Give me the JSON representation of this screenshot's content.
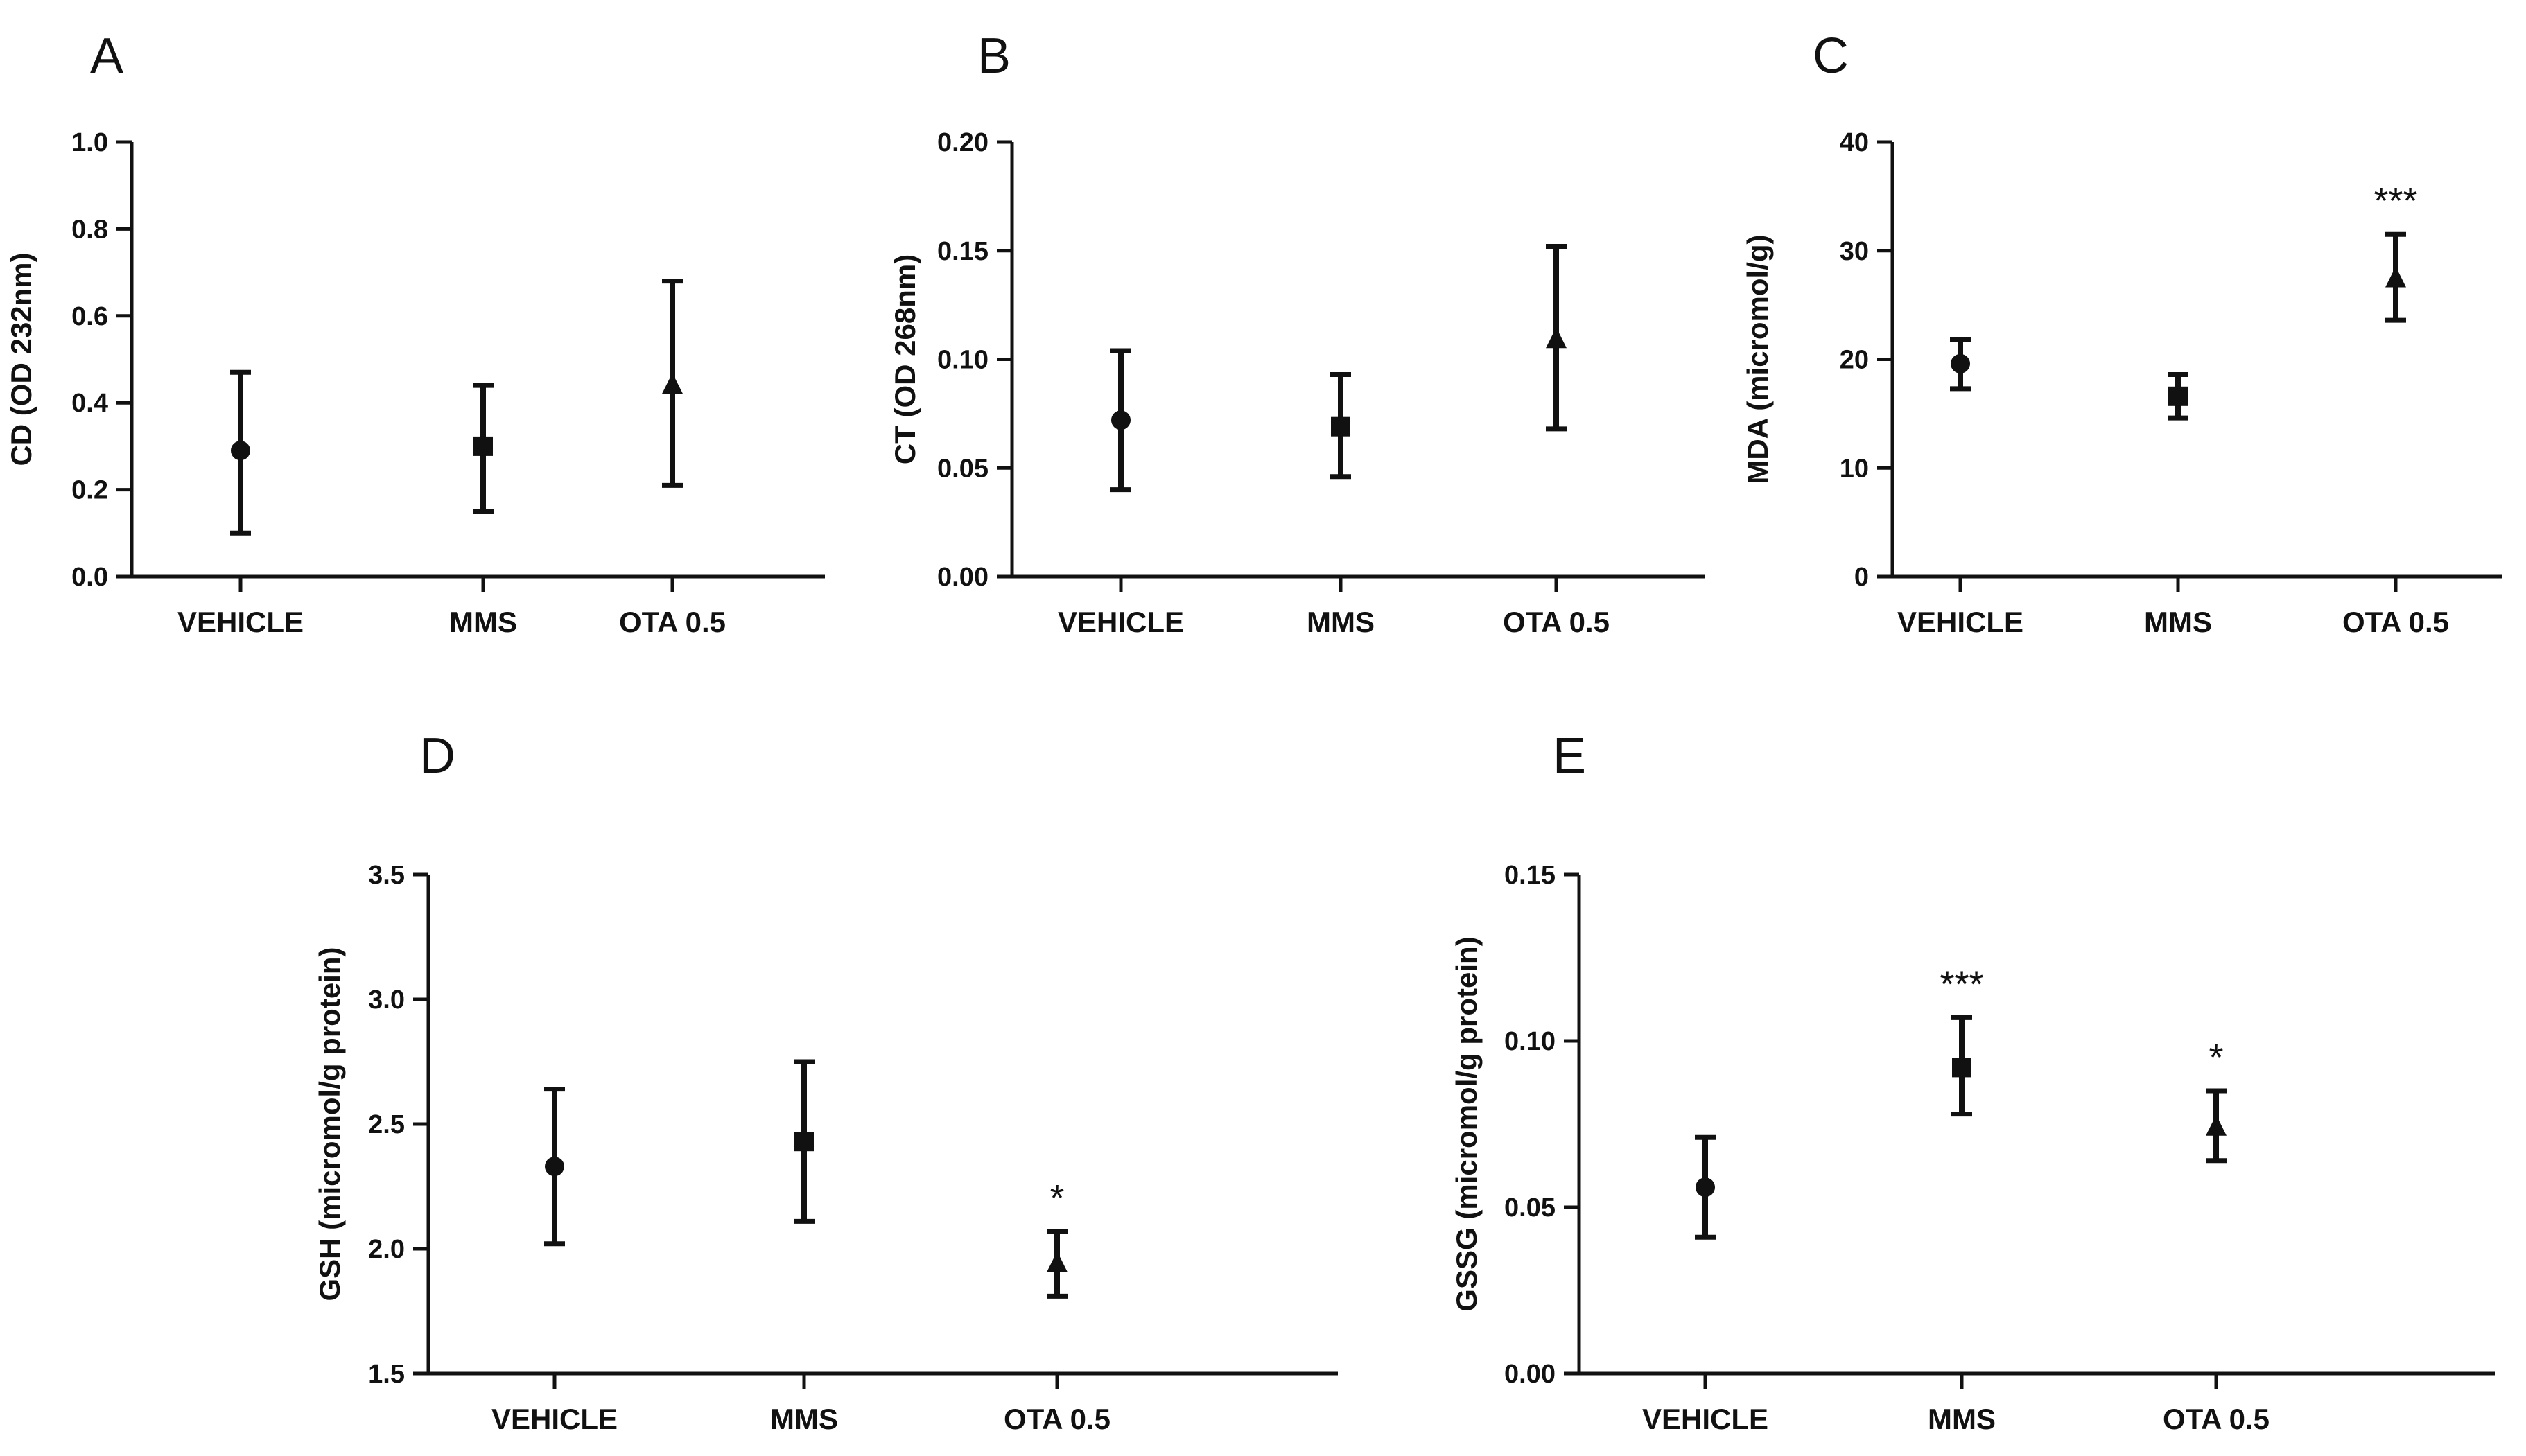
{
  "chart_data": [
    {
      "panel": "A",
      "type": "scatter",
      "ylabel": "CD (OD 232nm)",
      "ylim": [
        0,
        1.0
      ],
      "yticks": [
        "0.0",
        "0.2",
        "0.4",
        "0.6",
        "0.8",
        "1.0"
      ],
      "categories": [
        "VEHICLE",
        "MMS",
        "OTA 0.5"
      ],
      "markers": [
        "circle",
        "square",
        "triangle"
      ],
      "mean": [
        0.29,
        0.3,
        0.44
      ],
      "lower": [
        0.1,
        0.15,
        0.21
      ],
      "upper": [
        0.47,
        0.44,
        0.68
      ],
      "significance": [
        "",
        "",
        ""
      ]
    },
    {
      "panel": "B",
      "type": "scatter",
      "ylabel": "CT (OD 268nm)",
      "ylim": [
        0,
        0.2
      ],
      "yticks": [
        "0.00",
        "0.05",
        "0.10",
        "0.15",
        "0.20"
      ],
      "categories": [
        "VEHICLE",
        "MMS",
        "OTA 0.5"
      ],
      "markers": [
        "circle",
        "square",
        "triangle"
      ],
      "mean": [
        0.072,
        0.069,
        0.109
      ],
      "lower": [
        0.04,
        0.046,
        0.068
      ],
      "upper": [
        0.104,
        0.093,
        0.152
      ],
      "significance": [
        "",
        "",
        ""
      ]
    },
    {
      "panel": "C",
      "type": "scatter",
      "ylabel": "MDA (micromol/g)",
      "ylim": [
        0,
        40
      ],
      "yticks": [
        "0",
        "10",
        "20",
        "30",
        "40"
      ],
      "categories": [
        "VEHICLE",
        "MMS",
        "OTA 0.5"
      ],
      "markers": [
        "circle",
        "square",
        "triangle"
      ],
      "mean": [
        19.6,
        16.6,
        27.4
      ],
      "lower": [
        17.3,
        14.6,
        23.6
      ],
      "upper": [
        21.8,
        18.6,
        31.5
      ],
      "significance": [
        "",
        "",
        "***"
      ]
    },
    {
      "panel": "D",
      "type": "scatter",
      "ylabel": "GSH (micromol/g protein)",
      "ylim": [
        1.5,
        3.5
      ],
      "yticks": [
        "1.5",
        "2.0",
        "2.5",
        "3.0",
        "3.5"
      ],
      "categories": [
        "VEHICLE",
        "MMS",
        "OTA 0.5"
      ],
      "markers": [
        "circle",
        "square",
        "triangle"
      ],
      "mean": [
        2.33,
        2.43,
        1.94
      ],
      "lower": [
        2.02,
        2.11,
        1.81
      ],
      "upper": [
        2.64,
        2.75,
        2.07
      ],
      "significance": [
        "",
        "",
        "*"
      ]
    },
    {
      "panel": "E",
      "type": "scatter",
      "ylabel": "GSSG (micromol/g protein)",
      "ylim": [
        0,
        0.15
      ],
      "yticks": [
        "0.00",
        "0.05",
        "0.10",
        "0.15"
      ],
      "categories": [
        "VEHICLE",
        "MMS",
        "OTA 0.5"
      ],
      "markers": [
        "circle",
        "square",
        "triangle"
      ],
      "mean": [
        0.056,
        0.092,
        0.074
      ],
      "lower": [
        0.041,
        0.078,
        0.064
      ],
      "upper": [
        0.071,
        0.107,
        0.085
      ],
      "significance": [
        "",
        "***",
        "*"
      ]
    }
  ]
}
